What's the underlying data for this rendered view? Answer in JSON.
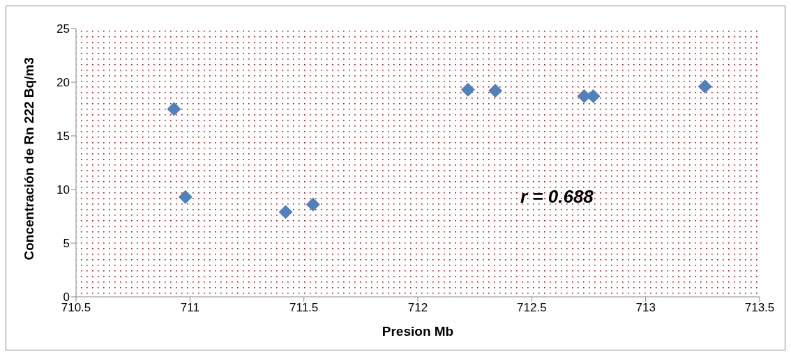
{
  "chart_data": {
    "type": "scatter",
    "xlabel": "Presion Mb",
    "ylabel": "Concentración de Rn 222 Bq/m3",
    "annotations": [
      "r = 0.688"
    ],
    "x": [
      710.93,
      710.98,
      711.42,
      711.54,
      712.22,
      712.34,
      712.73,
      712.77,
      713.26
    ],
    "series": [
      {
        "color": "#4f81bd",
        "values": [
          17.5,
          9.3,
          7.9,
          8.6,
          19.3,
          19.2,
          18.7,
          18.7,
          19.6
        ]
      }
    ],
    "xlim": [
      710.5,
      713.5
    ],
    "xticks": [
      710.5,
      711,
      711.5,
      712,
      712.5,
      713,
      713.5
    ],
    "ylim": [
      0,
      25
    ],
    "yticks": [
      0,
      5,
      10,
      15,
      20,
      25
    ],
    "marker": "diamond",
    "grid": false
  }
}
